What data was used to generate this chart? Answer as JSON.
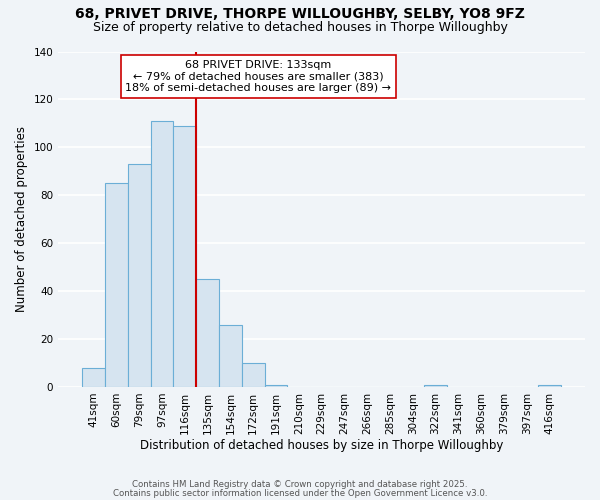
{
  "title": "68, PRIVET DRIVE, THORPE WILLOUGHBY, SELBY, YO8 9FZ",
  "subtitle": "Size of property relative to detached houses in Thorpe Willoughby",
  "xlabel": "Distribution of detached houses by size in Thorpe Willoughby",
  "ylabel": "Number of detached properties",
  "bar_labels": [
    "41sqm",
    "60sqm",
    "79sqm",
    "97sqm",
    "116sqm",
    "135sqm",
    "154sqm",
    "172sqm",
    "191sqm",
    "210sqm",
    "229sqm",
    "247sqm",
    "266sqm",
    "285sqm",
    "304sqm",
    "322sqm",
    "341sqm",
    "360sqm",
    "379sqm",
    "397sqm",
    "416sqm"
  ],
  "bar_values": [
    8,
    85,
    93,
    111,
    109,
    45,
    26,
    10,
    1,
    0,
    0,
    0,
    0,
    0,
    0,
    1,
    0,
    0,
    0,
    0,
    1
  ],
  "bar_color": "#d6e4f0",
  "bar_edge_color": "#6baed6",
  "vline_x_index": 4,
  "vline_color": "#cc0000",
  "annotation_text": "68 PRIVET DRIVE: 133sqm\n← 79% of detached houses are smaller (383)\n18% of semi-detached houses are larger (89) →",
  "annotation_box_color": "#ffffff",
  "annotation_box_edge_color": "#cc0000",
  "ylim": [
    0,
    140
  ],
  "yticks": [
    0,
    20,
    40,
    60,
    80,
    100,
    120,
    140
  ],
  "footer1": "Contains HM Land Registry data © Crown copyright and database right 2025.",
  "footer2": "Contains public sector information licensed under the Open Government Licence v3.0.",
  "background_color": "#f0f4f8",
  "grid_color": "#ffffff",
  "ann_fontsize": 8.0,
  "title_fontsize": 10,
  "subtitle_fontsize": 9,
  "xlabel_fontsize": 8.5,
  "ylabel_fontsize": 8.5
}
